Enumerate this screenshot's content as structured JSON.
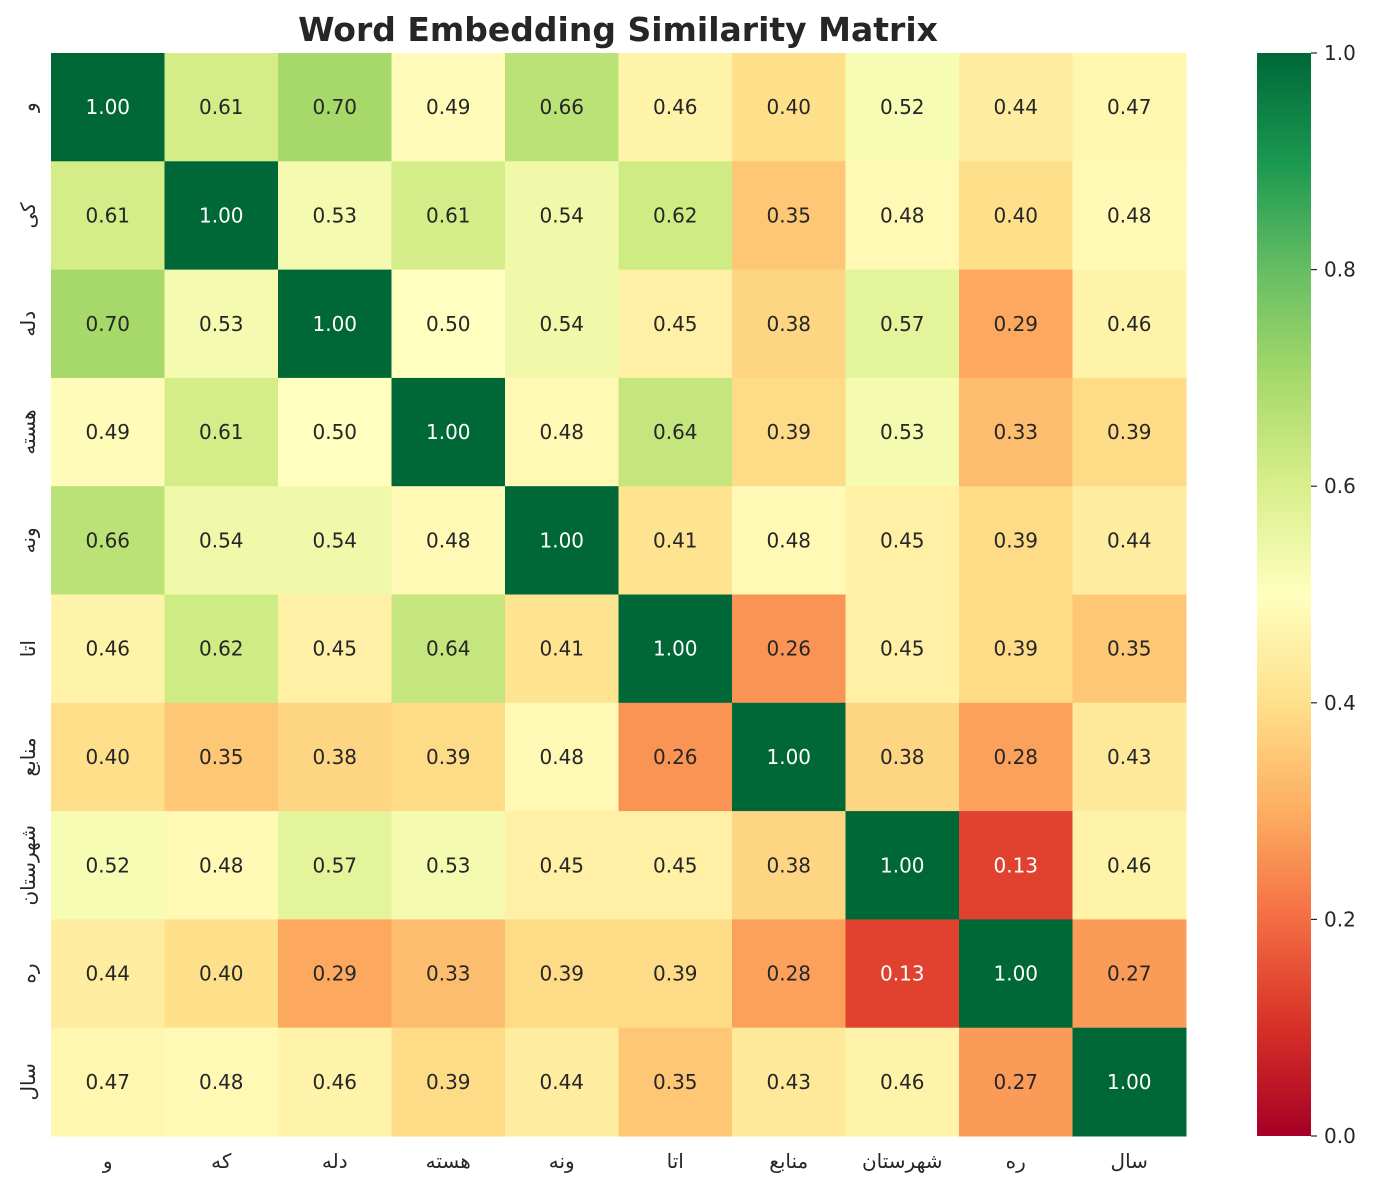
{
  "chart_data": {
    "type": "heatmap",
    "title": "Word Embedding Similarity Matrix",
    "xlabel": "",
    "ylabel": "",
    "x_categories": [
      "و",
      "که",
      "دله",
      "هسته",
      "ونه",
      "اتا",
      "منابع",
      "شهرستان",
      "ره",
      "سال"
    ],
    "y_categories": [
      "و",
      "کی",
      "دله",
      "هسته",
      "ونه",
      "اتا",
      "منابع",
      "شهرستان",
      "ره",
      "سال"
    ],
    "values": [
      [
        1.0,
        0.61,
        0.7,
        0.49,
        0.66,
        0.46,
        0.4,
        0.52,
        0.44,
        0.47
      ],
      [
        0.61,
        1.0,
        0.53,
        0.61,
        0.54,
        0.62,
        0.35,
        0.48,
        0.4,
        0.48
      ],
      [
        0.7,
        0.53,
        1.0,
        0.5,
        0.54,
        0.45,
        0.38,
        0.57,
        0.29,
        0.46
      ],
      [
        0.49,
        0.61,
        0.5,
        1.0,
        0.48,
        0.64,
        0.39,
        0.53,
        0.33,
        0.39
      ],
      [
        0.66,
        0.54,
        0.54,
        0.48,
        1.0,
        0.41,
        0.48,
        0.45,
        0.39,
        0.44
      ],
      [
        0.46,
        0.62,
        0.45,
        0.64,
        0.41,
        1.0,
        0.26,
        0.45,
        0.39,
        0.35
      ],
      [
        0.4,
        0.35,
        0.38,
        0.39,
        0.48,
        0.26,
        1.0,
        0.38,
        0.28,
        0.43
      ],
      [
        0.52,
        0.48,
        0.57,
        0.53,
        0.45,
        0.45,
        0.38,
        1.0,
        0.13,
        0.46
      ],
      [
        0.44,
        0.4,
        0.29,
        0.33,
        0.39,
        0.39,
        0.28,
        0.13,
        1.0,
        0.27
      ],
      [
        0.47,
        0.48,
        0.46,
        0.39,
        0.44,
        0.35,
        0.43,
        0.46,
        0.27,
        1.0
      ]
    ],
    "value_format": "0.00",
    "colormap": "RdYlGn",
    "vmin": 0.0,
    "vmax": 1.0,
    "colorbar": {
      "ticks": [
        0.0,
        0.2,
        0.4,
        0.6,
        0.8,
        1.0
      ],
      "tick_labels": [
        "0.0",
        "0.2",
        "0.4",
        "0.6",
        "0.8",
        "1.0"
      ]
    },
    "grid": false,
    "legend": "colorbar-right"
  }
}
